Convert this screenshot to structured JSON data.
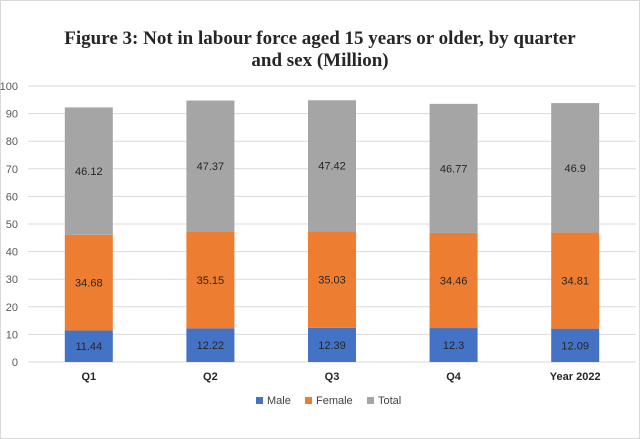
{
  "chart_data": {
    "type": "bar",
    "stacked": true,
    "title": "Figure 3: Not in labour force aged 15 years or older, by quarter and sex (Million)",
    "title_lines": [
      "Figure 3: Not in labour force aged 15 years or older, by quarter",
      "and sex (Million)"
    ],
    "categories": [
      "Q1",
      "Q2",
      "Q3",
      "Q4",
      "Year 2022"
    ],
    "series": [
      {
        "name": "Male",
        "color": "#4472C4",
        "values": [
          11.44,
          12.22,
          12.39,
          12.3,
          12.09
        ]
      },
      {
        "name": "Female",
        "color": "#ED7D31",
        "values": [
          34.68,
          35.15,
          35.03,
          34.46,
          34.81
        ]
      },
      {
        "name": "Total",
        "color": "#A5A5A5",
        "values": [
          46.12,
          47.37,
          47.42,
          46.77,
          46.9
        ]
      }
    ],
    "yticks": [
      "0",
      "10",
      "20",
      "30",
      "40",
      "50",
      "60",
      "70",
      "80",
      "90",
      "100"
    ],
    "ylim": [
      0,
      100
    ],
    "grid": true,
    "legend_position": "bottom"
  }
}
